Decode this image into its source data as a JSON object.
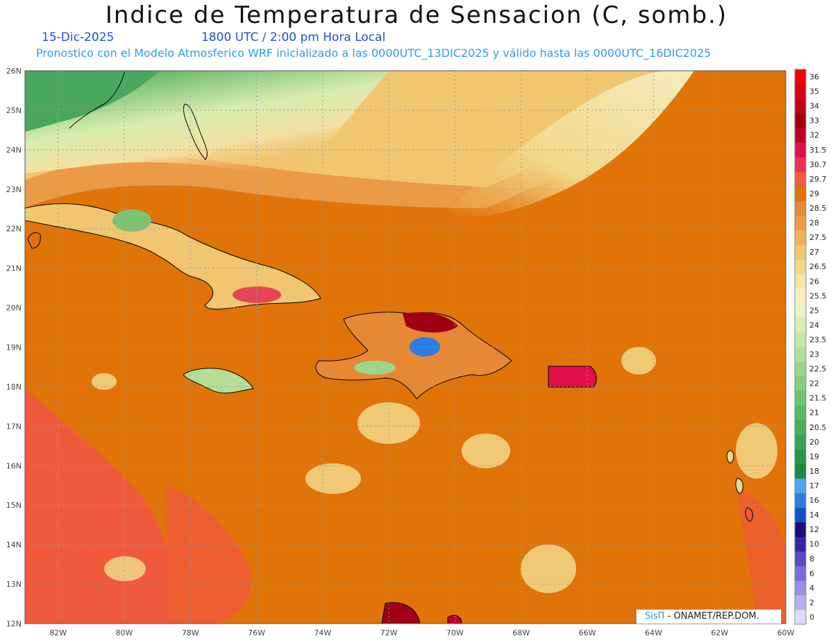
{
  "header": {
    "title": "Indice de Temperatura de Sensacion (C, somb.)",
    "date": "15-Dic-2025",
    "time": "1800 UTC / 2:00 pm Hora Local",
    "description": "Pronostico con el Modelo Atmosferico WRF inicializado a las 0000UTC_13DIC2025 y válido hasta las  0000UTC_16DIC2025"
  },
  "map": {
    "lat_range": [
      12,
      26
    ],
    "lon_range": [
      -83,
      -60
    ],
    "lat_labels": [
      "12N",
      "13N",
      "14N",
      "15N",
      "16N",
      "17N",
      "18N",
      "19N",
      "20N",
      "21N",
      "22N",
      "23N",
      "24N",
      "25N",
      "26N"
    ],
    "lon_labels": [
      "82W",
      "80W",
      "78W",
      "76W",
      "74W",
      "72W",
      "70W",
      "68W",
      "66W",
      "64W",
      "62W",
      "60W"
    ],
    "background_color": "#e07408"
  },
  "legend": {
    "levels": [
      "0",
      "2",
      "4",
      "6",
      "8",
      "10",
      "12",
      "14",
      "16",
      "17",
      "18",
      "19",
      "20",
      "20.5",
      "21",
      "21.5",
      "22",
      "22.5",
      "23",
      "23.5",
      "24",
      "25",
      "25.5",
      "26",
      "26.5",
      "27",
      "27.5",
      "28",
      "28.5",
      "29",
      "29.7",
      "30.7",
      "31.5",
      "32",
      "33",
      "34",
      "35",
      "36"
    ],
    "colors": [
      "#dcdcfa",
      "#b5b0f0",
      "#9a8ee6",
      "#7c6ad8",
      "#5e48c6",
      "#3c22a8",
      "#1a0c7a",
      "#1450c8",
      "#2a7ee0",
      "#4aa6f0",
      "#1a8a44",
      "#26984c",
      "#36a456",
      "#46ae5e",
      "#58b866",
      "#6ec272",
      "#84cc7e",
      "#9cd68a",
      "#b4de98",
      "#c8e6a6",
      "#dcecb6",
      "#eaf0c4",
      "#f2eec0",
      "#f4e6a6",
      "#f2d88a",
      "#f0c670",
      "#eeb05a",
      "#eb9a46",
      "#e68834",
      "#e07408",
      "#f05a3c",
      "#ee3058",
      "#e0104a",
      "#c00024",
      "#a00014",
      "#c0001c",
      "#dc0010",
      "#f40000"
    ]
  },
  "credit": {
    "brand": "SisΠ",
    "text": "- ONAMET/REP.DOM."
  }
}
